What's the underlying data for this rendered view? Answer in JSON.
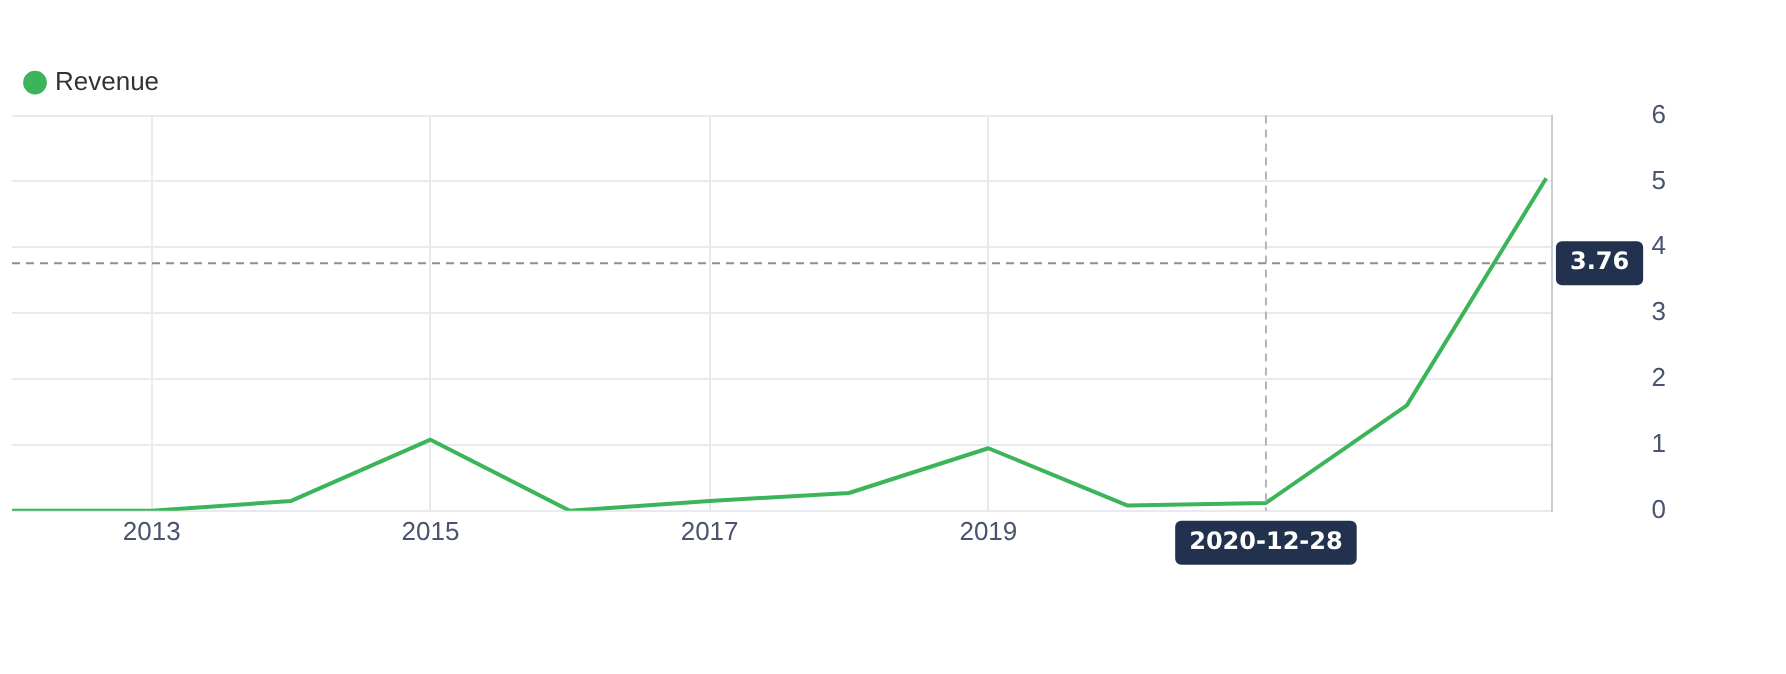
{
  "chart_data": {
    "type": "line",
    "x": [
      "2012",
      "2013",
      "2014",
      "2015",
      "2016",
      "2017",
      "2018",
      "2019",
      "2020",
      "2020-12-28",
      "2022",
      "2023"
    ],
    "series": [
      {
        "name": "Revenue",
        "color": "#3cb55a",
        "values": [
          0,
          0,
          0.15,
          1.08,
          0,
          0.15,
          0.27,
          0.95,
          0.08,
          0.12,
          1.6,
          5.05
        ]
      }
    ],
    "xlim": [
      "2012",
      "2023-01-15"
    ],
    "xticks": [
      "2013",
      "2015",
      "2017",
      "2019"
    ],
    "ylim": [
      0,
      6
    ],
    "yticks": [
      0,
      1,
      2,
      3,
      4,
      5,
      6
    ],
    "grid": true,
    "legend": "top left",
    "marker": "none",
    "ref_lines": [
      {
        "axis": "x",
        "value": "2020-12-28",
        "label": "2020-12-28",
        "color": "#b0b4bc",
        "line_style": "dashed"
      },
      {
        "axis": "y",
        "value": 3.76,
        "label": "3.76",
        "color": "#8a8e96",
        "line_style": "dashed"
      }
    ]
  }
}
